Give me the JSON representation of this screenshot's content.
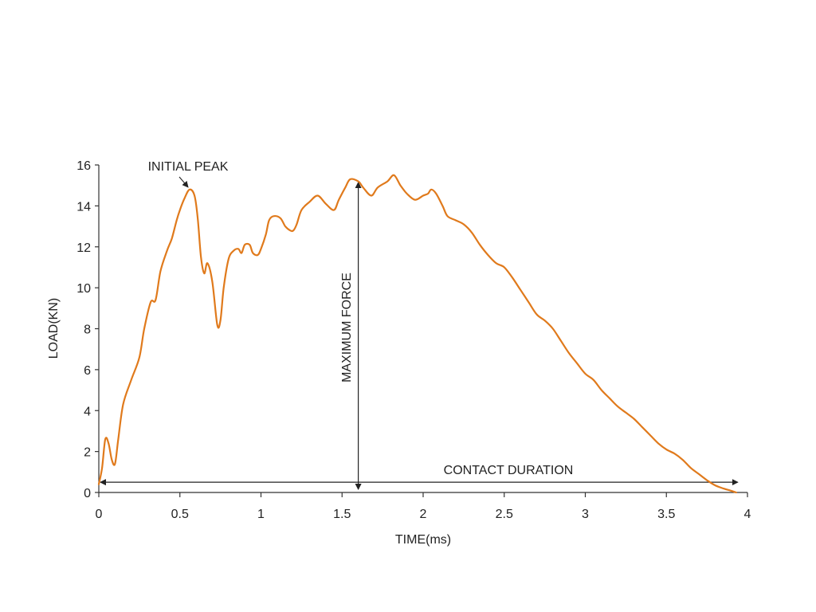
{
  "chart_data": {
    "type": "line",
    "title": "",
    "xlabel": "TIME(ms)",
    "ylabel": "LOAD(KN)",
    "xlim": [
      0,
      4
    ],
    "ylim": [
      0,
      16
    ],
    "x_ticks": [
      0,
      0.5,
      1,
      1.5,
      2,
      2.5,
      3,
      3.5,
      4
    ],
    "y_ticks": [
      0,
      2,
      4,
      6,
      8,
      10,
      12,
      14,
      16
    ],
    "x_tick_labels": [
      "0",
      "0.5",
      "1",
      "1.5",
      "2",
      "2.5",
      "3",
      "3.5",
      "4"
    ],
    "y_tick_labels": [
      "0",
      "2",
      "4",
      "6",
      "8",
      "10",
      "12",
      "14",
      "16"
    ],
    "grid": false,
    "legend": "none",
    "line_color": "#e07a1c",
    "series": [
      {
        "x": [
          0,
          0.02,
          0.04,
          0.06,
          0.08,
          0.1,
          0.12,
          0.15,
          0.2,
          0.25,
          0.28,
          0.32,
          0.35,
          0.38,
          0.42,
          0.45,
          0.48,
          0.5,
          0.53,
          0.56,
          0.59,
          0.61,
          0.63,
          0.65,
          0.67,
          0.7,
          0.73,
          0.75,
          0.77,
          0.8,
          0.83,
          0.86,
          0.88,
          0.9,
          0.93,
          0.95,
          0.98,
          1.0,
          1.03,
          1.05,
          1.08,
          1.12,
          1.15,
          1.18,
          1.2,
          1.22,
          1.25,
          1.3,
          1.35,
          1.4,
          1.45,
          1.48,
          1.52,
          1.55,
          1.6,
          1.63,
          1.68,
          1.72,
          1.78,
          1.82,
          1.86,
          1.9,
          1.95,
          2.0,
          2.03,
          2.05,
          2.08,
          2.12,
          2.15,
          2.2,
          2.25,
          2.3,
          2.35,
          2.4,
          2.45,
          2.5,
          2.55,
          2.6,
          2.65,
          2.7,
          2.75,
          2.8,
          2.85,
          2.9,
          2.95,
          3.0,
          3.05,
          3.1,
          3.15,
          3.2,
          3.25,
          3.3,
          3.35,
          3.4,
          3.45,
          3.5,
          3.55,
          3.6,
          3.65,
          3.7,
          3.75,
          3.8,
          3.85,
          3.9,
          3.93
        ],
        "y": [
          0.4,
          1.2,
          2.6,
          2.4,
          1.6,
          1.4,
          2.6,
          4.3,
          5.5,
          6.6,
          8.0,
          9.3,
          9.4,
          10.8,
          11.8,
          12.4,
          13.3,
          13.8,
          14.4,
          14.8,
          14.5,
          13.4,
          11.5,
          10.7,
          11.2,
          10.3,
          8.2,
          8.4,
          10.0,
          11.4,
          11.8,
          11.9,
          11.7,
          12.1,
          12.1,
          11.7,
          11.6,
          11.9,
          12.6,
          13.3,
          13.5,
          13.4,
          13.0,
          12.8,
          12.8,
          13.1,
          13.8,
          14.2,
          14.5,
          14.1,
          13.8,
          14.3,
          14.9,
          15.3,
          15.2,
          14.9,
          14.5,
          14.9,
          15.2,
          15.5,
          15.0,
          14.6,
          14.3,
          14.5,
          14.6,
          14.8,
          14.6,
          14.0,
          13.5,
          13.3,
          13.1,
          12.7,
          12.1,
          11.6,
          11.2,
          11.0,
          10.5,
          9.9,
          9.3,
          8.7,
          8.4,
          8.0,
          7.4,
          6.8,
          6.3,
          5.8,
          5.5,
          5.0,
          4.6,
          4.2,
          3.9,
          3.6,
          3.2,
          2.8,
          2.4,
          2.1,
          1.9,
          1.6,
          1.2,
          0.9,
          0.6,
          0.35,
          0.2,
          0.08,
          0.0
        ]
      }
    ],
    "annotations": {
      "initial_peak": {
        "text": "INITIAL PEAK",
        "x": 0.56,
        "y": 14.8
      },
      "maximum_force": {
        "text": "MAXIMUM FORCE",
        "x": 1.6,
        "y_from": 0,
        "y_to": 15.3
      },
      "contact_duration": {
        "text": "CONTACT DURATION",
        "y": 0.5,
        "x_from": 0,
        "x_to": 3.93
      }
    }
  }
}
